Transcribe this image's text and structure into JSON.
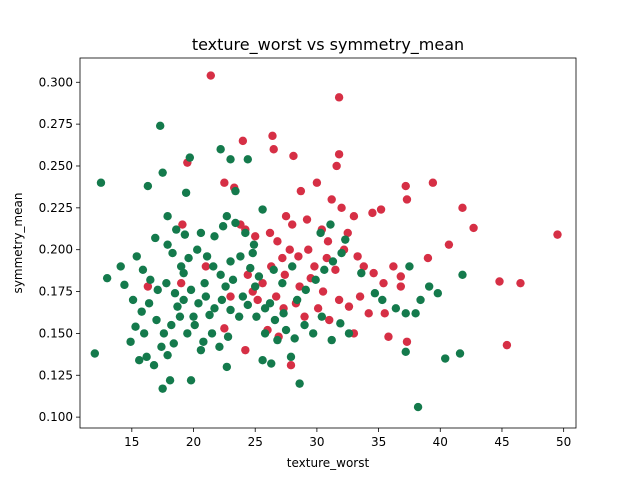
{
  "chart_data": {
    "type": "scatter",
    "title": "texture_worst vs symmetry_mean",
    "xlabel": "texture_worst",
    "ylabel": "symmetry_mean",
    "xlim": [
      10.8,
      51.0
    ],
    "ylim": [
      0.0935,
      0.3145
    ],
    "x_ticks": [
      15,
      20,
      25,
      30,
      35,
      40,
      45,
      50
    ],
    "x_tick_labels": [
      "15",
      "20",
      "25",
      "30",
      "35",
      "40",
      "45",
      "50"
    ],
    "y_ticks": [
      0.1,
      0.125,
      0.15,
      0.175,
      0.2,
      0.225,
      0.25,
      0.275,
      0.3
    ],
    "y_tick_labels": [
      "0.100",
      "0.125",
      "0.150",
      "0.175",
      "0.200",
      "0.225",
      "0.250",
      "0.275",
      "0.300"
    ],
    "grid": false,
    "legend": "none",
    "series": [
      {
        "color": "#d62f45",
        "points": [
          [
            21.4,
            0.304
          ],
          [
            31.8,
            0.291
          ],
          [
            26.4,
            0.268
          ],
          [
            24.0,
            0.265
          ],
          [
            19.5,
            0.252
          ],
          [
            26.5,
            0.26
          ],
          [
            28.1,
            0.256
          ],
          [
            31.6,
            0.25
          ],
          [
            30.0,
            0.24
          ],
          [
            22.5,
            0.24
          ],
          [
            23.3,
            0.237
          ],
          [
            31.8,
            0.257
          ],
          [
            37.2,
            0.238
          ],
          [
            39.4,
            0.24
          ],
          [
            28.7,
            0.235
          ],
          [
            31.2,
            0.23
          ],
          [
            37.3,
            0.23
          ],
          [
            41.8,
            0.225
          ],
          [
            42.7,
            0.213
          ],
          [
            49.5,
            0.209
          ],
          [
            40.7,
            0.203
          ],
          [
            46.5,
            0.18
          ],
          [
            44.8,
            0.181
          ],
          [
            39.0,
            0.195
          ],
          [
            45.4,
            0.143
          ],
          [
            37.3,
            0.145
          ],
          [
            36.8,
            0.178
          ],
          [
            32.0,
            0.225
          ],
          [
            33.0,
            0.22
          ],
          [
            34.5,
            0.222
          ],
          [
            35.2,
            0.224
          ],
          [
            27.5,
            0.22
          ],
          [
            28.0,
            0.215
          ],
          [
            29.2,
            0.218
          ],
          [
            30.4,
            0.212
          ],
          [
            26.2,
            0.21
          ],
          [
            25.0,
            0.208
          ],
          [
            24.2,
            0.212
          ],
          [
            26.8,
            0.205
          ],
          [
            27.8,
            0.2
          ],
          [
            28.5,
            0.196
          ],
          [
            29.8,
            0.19
          ],
          [
            30.8,
            0.195
          ],
          [
            31.5,
            0.188
          ],
          [
            32.2,
            0.2
          ],
          [
            33.3,
            0.196
          ],
          [
            33.8,
            0.19
          ],
          [
            34.6,
            0.186
          ],
          [
            35.4,
            0.18
          ],
          [
            36.2,
            0.19
          ],
          [
            36.8,
            0.184
          ],
          [
            29.5,
            0.183
          ],
          [
            28.6,
            0.178
          ],
          [
            27.4,
            0.185
          ],
          [
            26.3,
            0.19
          ],
          [
            25.6,
            0.18
          ],
          [
            24.8,
            0.175
          ],
          [
            24.4,
            0.185
          ],
          [
            25.2,
            0.17
          ],
          [
            26.7,
            0.172
          ],
          [
            27.3,
            0.165
          ],
          [
            28.3,
            0.168
          ],
          [
            29.0,
            0.16
          ],
          [
            30.1,
            0.165
          ],
          [
            31.0,
            0.158
          ],
          [
            31.8,
            0.17
          ],
          [
            32.6,
            0.166
          ],
          [
            33.5,
            0.172
          ],
          [
            34.2,
            0.162
          ],
          [
            35.5,
            0.162
          ],
          [
            33.0,
            0.15
          ],
          [
            35.8,
            0.148
          ],
          [
            26.0,
            0.152
          ],
          [
            22.5,
            0.153
          ],
          [
            24.2,
            0.14
          ],
          [
            23.0,
            0.172
          ],
          [
            27.9,
            0.131
          ],
          [
            26.9,
            0.148
          ],
          [
            19.0,
            0.18
          ],
          [
            19.1,
            0.215
          ],
          [
            16.3,
            0.178
          ],
          [
            21.0,
            0.19
          ],
          [
            23.8,
            0.215
          ],
          [
            30.9,
            0.205
          ],
          [
            32.5,
            0.21
          ],
          [
            30.5,
            0.175
          ],
          [
            29.3,
            0.2
          ],
          [
            27.2,
            0.195
          ]
        ]
      },
      {
        "color": "#147a4c",
        "points": [
          [
            12.5,
            0.24
          ],
          [
            17.3,
            0.274
          ],
          [
            19.7,
            0.255
          ],
          [
            16.3,
            0.238
          ],
          [
            17.5,
            0.246
          ],
          [
            19.4,
            0.234
          ],
          [
            22.2,
            0.26
          ],
          [
            23.0,
            0.254
          ],
          [
            24.4,
            0.254
          ],
          [
            23.4,
            0.235
          ],
          [
            22.7,
            0.22
          ],
          [
            25.6,
            0.224
          ],
          [
            17.9,
            0.22
          ],
          [
            18.6,
            0.212
          ],
          [
            19.3,
            0.209
          ],
          [
            20.6,
            0.21
          ],
          [
            21.7,
            0.208
          ],
          [
            22.4,
            0.214
          ],
          [
            23.4,
            0.216
          ],
          [
            24.2,
            0.21
          ],
          [
            24.9,
            0.203
          ],
          [
            16.9,
            0.207
          ],
          [
            17.9,
            0.203
          ],
          [
            18.3,
            0.198
          ],
          [
            19.0,
            0.19
          ],
          [
            19.6,
            0.195
          ],
          [
            20.3,
            0.2
          ],
          [
            21.1,
            0.196
          ],
          [
            21.6,
            0.19
          ],
          [
            22.2,
            0.185
          ],
          [
            23.0,
            0.193
          ],
          [
            23.8,
            0.196
          ],
          [
            24.6,
            0.189
          ],
          [
            25.3,
            0.184
          ],
          [
            13.0,
            0.183
          ],
          [
            14.1,
            0.19
          ],
          [
            14.4,
            0.179
          ],
          [
            15.4,
            0.196
          ],
          [
            15.9,
            0.188
          ],
          [
            16.5,
            0.182
          ],
          [
            17.1,
            0.176
          ],
          [
            17.8,
            0.18
          ],
          [
            18.5,
            0.174
          ],
          [
            19.2,
            0.17
          ],
          [
            19.8,
            0.176
          ],
          [
            20.4,
            0.168
          ],
          [
            21.0,
            0.172
          ],
          [
            21.7,
            0.165
          ],
          [
            22.3,
            0.17
          ],
          [
            23.0,
            0.164
          ],
          [
            23.7,
            0.16
          ],
          [
            24.4,
            0.167
          ],
          [
            25.1,
            0.16
          ],
          [
            25.8,
            0.165
          ],
          [
            26.6,
            0.158
          ],
          [
            27.3,
            0.162
          ],
          [
            15.1,
            0.17
          ],
          [
            15.8,
            0.163
          ],
          [
            16.4,
            0.168
          ],
          [
            17.0,
            0.158
          ],
          [
            17.6,
            0.15
          ],
          [
            18.2,
            0.155
          ],
          [
            18.9,
            0.16
          ],
          [
            19.5,
            0.15
          ],
          [
            20.1,
            0.155
          ],
          [
            20.8,
            0.145
          ],
          [
            21.5,
            0.15
          ],
          [
            22.1,
            0.142
          ],
          [
            22.8,
            0.148
          ],
          [
            14.9,
            0.145
          ],
          [
            15.6,
            0.134
          ],
          [
            16.2,
            0.136
          ],
          [
            16.8,
            0.131
          ],
          [
            17.4,
            0.142
          ],
          [
            17.9,
            0.137
          ],
          [
            18.4,
            0.144
          ],
          [
            18.1,
            0.122
          ],
          [
            19.8,
            0.122
          ],
          [
            17.5,
            0.117
          ],
          [
            20.6,
            0.14
          ],
          [
            22.7,
            0.13
          ],
          [
            25.6,
            0.134
          ],
          [
            26.3,
            0.132
          ],
          [
            28.6,
            0.12
          ],
          [
            27.9,
            0.136
          ],
          [
            25.8,
            0.15
          ],
          [
            26.8,
            0.146
          ],
          [
            27.5,
            0.152
          ],
          [
            28.2,
            0.147
          ],
          [
            29.0,
            0.155
          ],
          [
            29.7,
            0.15
          ],
          [
            30.4,
            0.16
          ],
          [
            31.2,
            0.146
          ],
          [
            31.9,
            0.156
          ],
          [
            32.6,
            0.15
          ],
          [
            28.4,
            0.17
          ],
          [
            29.1,
            0.176
          ],
          [
            29.9,
            0.182
          ],
          [
            30.6,
            0.188
          ],
          [
            31.3,
            0.193
          ],
          [
            32.0,
            0.198
          ],
          [
            30.3,
            0.21
          ],
          [
            31.1,
            0.215
          ],
          [
            32.3,
            0.206
          ],
          [
            33.6,
            0.186
          ],
          [
            34.7,
            0.174
          ],
          [
            35.3,
            0.17
          ],
          [
            36.4,
            0.165
          ],
          [
            37.2,
            0.162
          ],
          [
            38.0,
            0.162
          ],
          [
            37.5,
            0.19
          ],
          [
            38.4,
            0.17
          ],
          [
            39.1,
            0.178
          ],
          [
            39.8,
            0.174
          ],
          [
            41.8,
            0.185
          ],
          [
            41.6,
            0.138
          ],
          [
            40.4,
            0.135
          ],
          [
            37.2,
            0.139
          ],
          [
            38.2,
            0.106
          ],
          [
            12.0,
            0.138
          ],
          [
            20.9,
            0.18
          ],
          [
            19.2,
            0.186
          ],
          [
            22.6,
            0.178
          ],
          [
            21.3,
            0.161
          ],
          [
            24.0,
            0.172
          ],
          [
            25.0,
            0.178
          ],
          [
            26.2,
            0.168
          ],
          [
            28.0,
            0.19
          ],
          [
            27.2,
            0.18
          ],
          [
            26.5,
            0.188
          ],
          [
            24.8,
            0.198
          ],
          [
            23.2,
            0.182
          ],
          [
            20.0,
            0.16
          ],
          [
            18.7,
            0.166
          ],
          [
            16.0,
            0.15
          ],
          [
            15.3,
            0.154
          ]
        ]
      }
    ]
  }
}
